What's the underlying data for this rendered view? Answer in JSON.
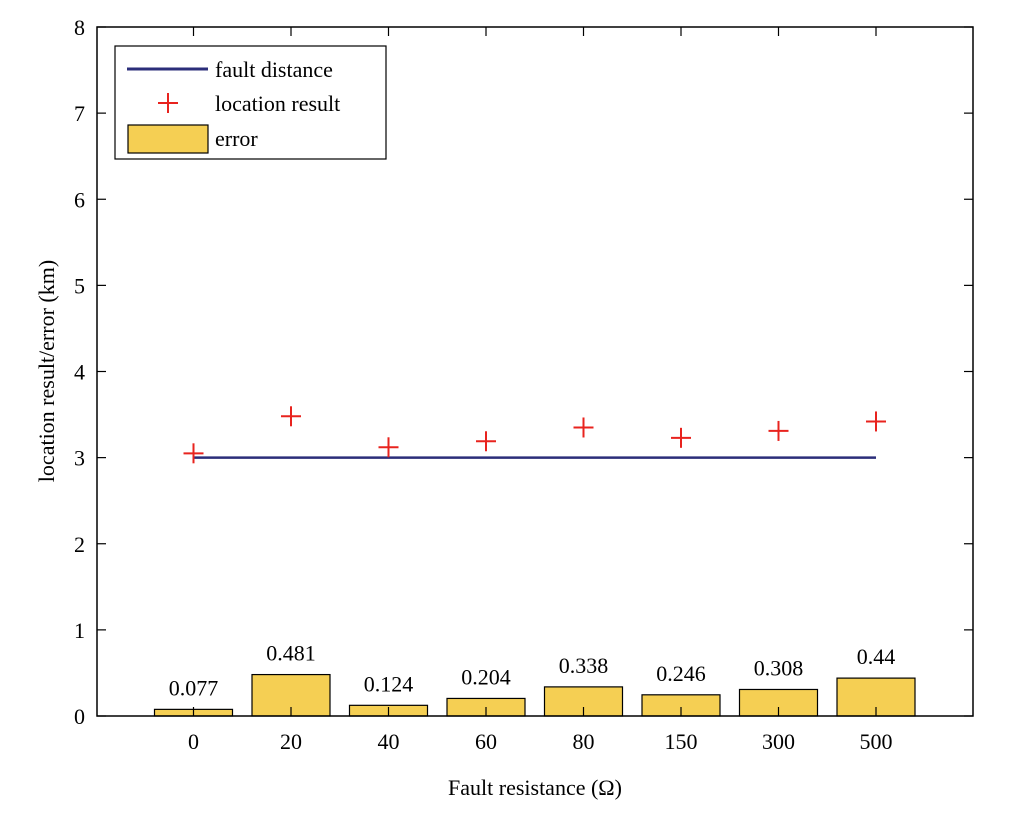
{
  "chart_data": {
    "type": "bar",
    "categories": [
      "0",
      "20",
      "40",
      "60",
      "80",
      "150",
      "300",
      "500"
    ],
    "xlabel": "Fault resistance (Ω)",
    "ylabel": "location result/error (km)",
    "ylim": [
      0,
      8
    ],
    "yticks": [
      "0",
      "1",
      "2",
      "3",
      "4",
      "5",
      "6",
      "7",
      "8"
    ],
    "grid": false,
    "legend_position": "top-left",
    "series": [
      {
        "name": "error",
        "kind": "bar",
        "color": "#f5cf53",
        "values": [
          0.077,
          0.481,
          0.124,
          0.204,
          0.338,
          0.246,
          0.308,
          0.44
        ],
        "labels": [
          "0.077",
          "0.481",
          "0.124",
          "0.204",
          "0.338",
          "0.246",
          "0.308",
          "0.44"
        ]
      },
      {
        "name": "fault distance",
        "kind": "line",
        "color": "#2b2e7a",
        "values": [
          3,
          3,
          3,
          3,
          3,
          3,
          3,
          3
        ]
      },
      {
        "name": "location result",
        "kind": "marker",
        "color": "#e8231e",
        "values": [
          3.05,
          3.48,
          3.12,
          3.19,
          3.35,
          3.23,
          3.31,
          3.42
        ]
      }
    ]
  }
}
